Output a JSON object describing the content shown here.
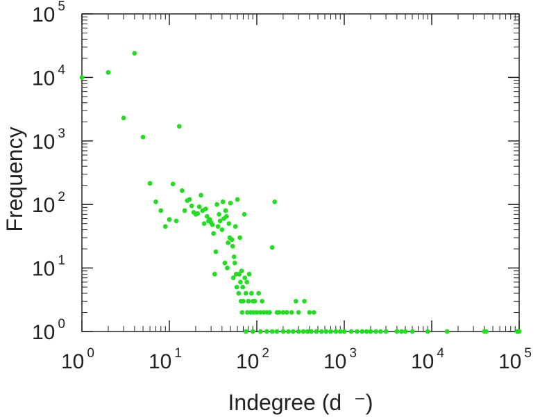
{
  "chart_data": {
    "type": "scatter",
    "xlabel": "Indegree (d  ⁻)",
    "ylabel": "Frequency",
    "xscale": "log",
    "yscale": "log",
    "xlim": [
      1,
      100000
    ],
    "ylim": [
      1,
      100000
    ],
    "grid": false,
    "legend": "none",
    "marker_color": "#22dd22",
    "axis_color": "#222222",
    "x_ticks": [
      {
        "base": "10",
        "exp": "0"
      },
      {
        "base": "10",
        "exp": "1"
      },
      {
        "base": "10",
        "exp": "2"
      },
      {
        "base": "10",
        "exp": "3"
      },
      {
        "base": "10",
        "exp": "4"
      },
      {
        "base": "10",
        "exp": "5"
      }
    ],
    "y_ticks": [
      {
        "base": "10",
        "exp": "0"
      },
      {
        "base": "10",
        "exp": "1"
      },
      {
        "base": "10",
        "exp": "2"
      },
      {
        "base": "10",
        "exp": "3"
      },
      {
        "base": "10",
        "exp": "4"
      },
      {
        "base": "10",
        "exp": "5"
      }
    ],
    "x": [
      1,
      2,
      3,
      4,
      5,
      6,
      7,
      8,
      9,
      10,
      11,
      12,
      13,
      14,
      15,
      16,
      17,
      18,
      19,
      20,
      21,
      22,
      23,
      24,
      25,
      26,
      27,
      28,
      29,
      30,
      31,
      32,
      33,
      34,
      35,
      36,
      37,
      38,
      40,
      41,
      42,
      43,
      44,
      45,
      46,
      47,
      48,
      49,
      50,
      52,
      53,
      54,
      55,
      56,
      57,
      58,
      59,
      60,
      62,
      63,
      64,
      65,
      66,
      67,
      68,
      69,
      70,
      72,
      73,
      75,
      77,
      78,
      80,
      82,
      85,
      87,
      90,
      92,
      95,
      100,
      105,
      110,
      115,
      120,
      130,
      140,
      150,
      160,
      170,
      180,
      200,
      220,
      250,
      280,
      300,
      350,
      400,
      450,
      75,
      90,
      110,
      130,
      150,
      170,
      200,
      230,
      260,
      300,
      340,
      380,
      420,
      480,
      550,
      620,
      700,
      800,
      900,
      1000,
      1200,
      1400,
      1600,
      1800,
      2000,
      2300,
      2600,
      3000,
      4000,
      4500,
      5000,
      6000,
      9000,
      15000,
      40000,
      42000,
      95000,
      100000
    ],
    "y": [
      10000,
      12000,
      2300,
      24000,
      1150,
      215,
      110,
      80,
      45,
      58,
      210,
      55,
      1700,
      165,
      80,
      115,
      120,
      95,
      75,
      70,
      72,
      92,
      140,
      80,
      50,
      85,
      65,
      55,
      58,
      52,
      48,
      35,
      8,
      18,
      100,
      45,
      70,
      55,
      40,
      110,
      60,
      12,
      80,
      65,
      10,
      25,
      50,
      30,
      105,
      28,
      22,
      7,
      15,
      12,
      45,
      8,
      5,
      120,
      4,
      8,
      30,
      6,
      3,
      9,
      2,
      5,
      3,
      70,
      7,
      4,
      6,
      2,
      3,
      8,
      2,
      4,
      3,
      2,
      3,
      2,
      4,
      2,
      3,
      2,
      2,
      2,
      21,
      110,
      2,
      2,
      2,
      2,
      2,
      3,
      2,
      3,
      2,
      2,
      1,
      1,
      1,
      1,
      1,
      1,
      1,
      1,
      1,
      1,
      1,
      1,
      1,
      1,
      1,
      1,
      1,
      1,
      1,
      1,
      1,
      1,
      1,
      1,
      1,
      1,
      1,
      1,
      1,
      1,
      1,
      1,
      1,
      1,
      1,
      1,
      1,
      1
    ]
  }
}
